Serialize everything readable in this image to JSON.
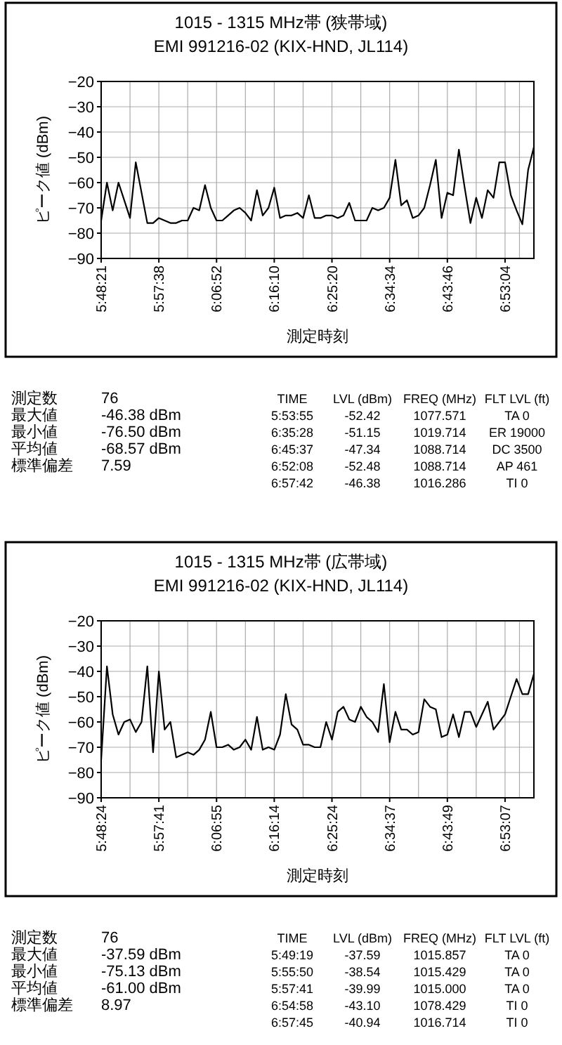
{
  "chart_data": [
    {
      "type": "line",
      "title": "1015 - 1315 MHz帯 (狭帯域)",
      "subtitle": "EMI 991216-02 (KIX-HND, JL114)",
      "xlabel": "測定時刻",
      "ylabel": "ピーク値 (dBm)",
      "categories": [
        "5:48:21",
        null,
        null,
        null,
        null,
        null,
        null,
        null,
        null,
        null,
        "5:57:38",
        null,
        null,
        null,
        null,
        null,
        null,
        null,
        null,
        null,
        "6:06:52",
        null,
        null,
        null,
        null,
        null,
        null,
        null,
        null,
        null,
        "6:16:10",
        null,
        null,
        null,
        null,
        null,
        null,
        null,
        null,
        null,
        "6:25:20",
        null,
        null,
        null,
        null,
        null,
        null,
        null,
        null,
        null,
        "6:34:34",
        null,
        null,
        null,
        null,
        null,
        null,
        null,
        null,
        null,
        "6:43:46",
        null,
        null,
        null,
        null,
        null,
        null,
        null,
        null,
        null,
        "6:53:04",
        null,
        null,
        null,
        null,
        null
      ],
      "values": [
        -75,
        -60,
        -71,
        -60,
        -67,
        -74,
        -52,
        -64,
        -76,
        -76,
        -74,
        -75,
        -76,
        -76,
        -75,
        -75,
        -70,
        -71,
        -61,
        -70,
        -75,
        -75,
        -73,
        -71,
        -70,
        -72,
        -75,
        -63,
        -73,
        -70,
        -62,
        -74,
        -73,
        -73,
        -72,
        -74,
        -65,
        -74,
        -74,
        -73,
        -73,
        -74,
        -73,
        -68,
        -75,
        -75,
        -75,
        -70,
        -71,
        -70,
        -66,
        -51,
        -69,
        -67,
        -74,
        -73,
        -70,
        -61,
        -51,
        -74,
        -64,
        -65,
        -47,
        -62,
        -76,
        -66,
        -74,
        -63,
        -66,
        -52,
        -52,
        -65,
        -71,
        -76.5,
        -55,
        -46
      ],
      "color": "#000000",
      "ylim": [
        -90,
        -20
      ],
      "yticks": [
        -90,
        -80,
        -70,
        -60,
        -50,
        -40,
        -30,
        -20
      ],
      "grid": true,
      "annotations": [
        "測定数",
        "76",
        "最大値",
        "-46.38  dBm",
        "最小値",
        "-76.50  dBm",
        "平均値",
        "-68.57  dBm",
        "標準偏差",
        "7.59",
        "TIME",
        "LVL (dBm)",
        "FREQ (MHz)",
        "FLT LVL (ft)",
        "5:53:55",
        "-52.42",
        "1077.571",
        "TA  0",
        "6:35:28",
        "-51.15",
        "1019.714",
        "ER 19000",
        "6:45:37",
        "-47.34",
        "1088.714",
        "DC  3500",
        "6:52:08",
        "-52.48",
        "1088.714",
        "AP  461",
        "6:57:42",
        "-46.38",
        "1016.286",
        "TI  0"
      ]
    },
    {
      "type": "line",
      "title": "1015 - 1315 MHz帯 (広帯域)",
      "subtitle": "EMI 991216-02 (KIX-HND, JL114)",
      "xlabel": "測定時刻",
      "ylabel": "ピーク値 (dBm)",
      "categories": [
        "5:48:24",
        null,
        null,
        null,
        null,
        null,
        null,
        null,
        null,
        null,
        "5:57:41",
        null,
        null,
        null,
        null,
        null,
        null,
        null,
        null,
        null,
        "6:06:55",
        null,
        null,
        null,
        null,
        null,
        null,
        null,
        null,
        null,
        "6:16:14",
        null,
        null,
        null,
        null,
        null,
        null,
        null,
        null,
        null,
        "6:25:24",
        null,
        null,
        null,
        null,
        null,
        null,
        null,
        null,
        null,
        "6:34:37",
        null,
        null,
        null,
        null,
        null,
        null,
        null,
        null,
        null,
        "6:43:49",
        null,
        null,
        null,
        null,
        null,
        null,
        null,
        null,
        null,
        "6:53:07",
        null,
        null,
        null,
        null,
        null
      ],
      "values": [
        -75,
        -38,
        -57,
        -65,
        -60,
        -59,
        -64,
        -60,
        -38,
        -72,
        -40,
        -63,
        -60,
        -74,
        -73,
        -72,
        -73,
        -71,
        -67,
        -56,
        -70,
        -70,
        -69,
        -71,
        -70,
        -67,
        -71,
        -58,
        -71,
        -70,
        -71,
        -65,
        -49,
        -61,
        -63,
        -69,
        -69,
        -70,
        -70,
        -60,
        -67,
        -56,
        -54,
        -59,
        -60,
        -54,
        -58,
        -60,
        -64,
        -45,
        -68,
        -56,
        -63,
        -63,
        -65,
        -64,
        -51,
        -54,
        -55,
        -66,
        -65,
        -57,
        -66,
        -56,
        -56,
        -62,
        -57,
        -52,
        -63,
        -60,
        -57,
        -50,
        -43,
        -49,
        -49,
        -41
      ],
      "color": "#000000",
      "ylim": [
        -90,
        -20
      ],
      "yticks": [
        -90,
        -80,
        -70,
        -60,
        -50,
        -40,
        -30,
        -20
      ],
      "grid": true,
      "annotations": [
        "測定数",
        "76",
        "最大値",
        "-37.59  dBm",
        "最小値",
        "-75.13  dBm",
        "平均値",
        "-61.00  dBm",
        "標準偏差",
        "8.97",
        "TIME",
        "LVL (dBm)",
        "FREQ (MHz)",
        "FLT LVL (ft)",
        "5:49:19",
        "-37.59",
        "1015.857",
        "TA  0",
        "5:55:50",
        "-38.54",
        "1015.429",
        "TA  0",
        "5:57:41",
        "-39.99",
        "1015.000",
        "TA  0",
        "6:54:58",
        "-43.10",
        "1078.429",
        "TI  0",
        "6:57:45",
        "-40.94",
        "1016.714",
        "TI  0"
      ]
    }
  ]
}
